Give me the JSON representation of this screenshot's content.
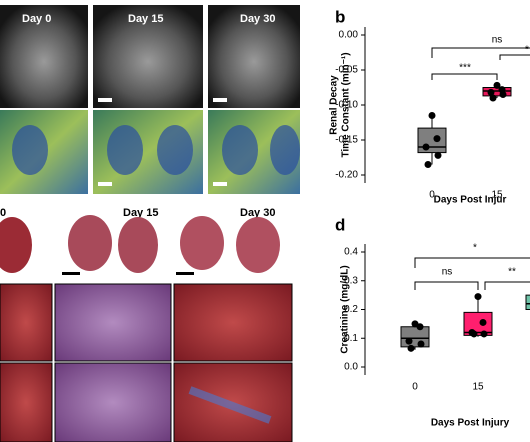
{
  "image_labels": {
    "mri": [
      "Day 0",
      "Day 15",
      "Day 30"
    ],
    "histology": [
      "0",
      "Day 15",
      "Day 30"
    ]
  },
  "chart_data": [
    {
      "type": "box",
      "panel": "b",
      "ylabel": [
        "Renal Decay",
        "Time Constant (min⁻¹)"
      ],
      "xlabel": "Days Post Injur",
      "categories": [
        "0",
        "15"
      ],
      "colors": [
        "#7f7f7f",
        "#e8185a"
      ],
      "boxes": [
        {
          "min": -0.185,
          "q1": -0.168,
          "median": -0.16,
          "q3": -0.133,
          "max": -0.115,
          "points": [
            -0.115,
            -0.148,
            -0.16,
            -0.172,
            -0.185
          ]
        },
        {
          "min": -0.09,
          "q1": -0.087,
          "median": -0.08,
          "q3": -0.075,
          "max": -0.07,
          "points": [
            -0.072,
            -0.078,
            -0.082,
            -0.085,
            -0.09
          ]
        }
      ],
      "ylim": [
        -0.2,
        0
      ],
      "yticks": [
        {
          "value": -0.2,
          "label": "-0.20"
        },
        {
          "value": -0.15,
          "label": "-0.15"
        },
        {
          "value": -0.1,
          "label": "-0.10"
        },
        {
          "value": -0.05,
          "label": "-0.05"
        },
        {
          "value": 0,
          "label": "0.00"
        }
      ],
      "annotations": [
        "ns",
        "***",
        "*"
      ]
    },
    {
      "type": "box",
      "panel": "d",
      "ylabel": [
        "Creatinine (mg/dL)"
      ],
      "xlabel": "Days Post Injury",
      "categories": [
        "0",
        "15",
        null
      ],
      "colors": [
        "#7f7f7f",
        "#ff1f6e",
        "#6fc2a8"
      ],
      "boxes": [
        {
          "min": 0.06,
          "q1": 0.07,
          "median": 0.1,
          "q3": 0.14,
          "max": 0.155,
          "points": [
            0.15,
            0.14,
            0.09,
            0.08,
            0.065
          ]
        },
        {
          "min": 0.105,
          "q1": 0.11,
          "median": 0.12,
          "q3": 0.19,
          "max": 0.245,
          "points": [
            0.245,
            0.155,
            0.12,
            0.115,
            0.115
          ]
        },
        {
          "min": 0.19,
          "q1": 0.2,
          "median": 0.22,
          "q3": 0.25,
          "max": 0.26,
          "points": []
        }
      ],
      "ylim": [
        0,
        0.4
      ],
      "yticks": [
        {
          "value": 0,
          "label": "0.0"
        },
        {
          "value": 0.1,
          "label": "0.1"
        },
        {
          "value": 0.2,
          "label": "0.2"
        },
        {
          "value": 0.3,
          "label": "0.3"
        },
        {
          "value": 0.4,
          "label": "0.4"
        }
      ],
      "annotations": [
        "*",
        "ns",
        "**"
      ]
    }
  ]
}
